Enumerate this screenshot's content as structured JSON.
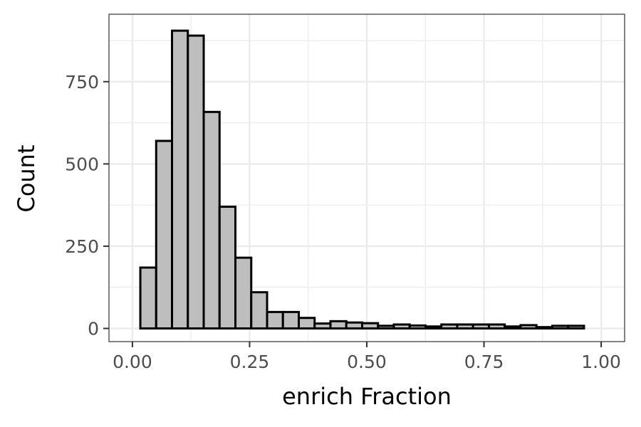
{
  "chart_data": {
    "type": "bar",
    "title": "",
    "xlabel": "enrich Fraction",
    "ylabel": "Count",
    "xlim": [
      -0.05,
      1.05
    ],
    "ylim": [
      -40,
      955
    ],
    "grid": true,
    "x_ticks": [
      {
        "value": 0.0,
        "label": "0.00"
      },
      {
        "value": 0.25,
        "label": "0.25"
      },
      {
        "value": 0.5,
        "label": "0.50"
      },
      {
        "value": 0.75,
        "label": "0.75"
      },
      {
        "value": 1.0,
        "label": "1.00"
      }
    ],
    "y_ticks": [
      {
        "value": 0,
        "label": "0"
      },
      {
        "value": 250,
        "label": "250"
      },
      {
        "value": 500,
        "label": "500"
      },
      {
        "value": 750,
        "label": "750"
      }
    ],
    "bin_width": 0.0338,
    "bin_centers": [
      0.0338,
      0.0676,
      0.1014,
      0.1352,
      0.169,
      0.2028,
      0.2366,
      0.2704,
      0.3042,
      0.338,
      0.3718,
      0.4056,
      0.4394,
      0.4732,
      0.507,
      0.5408,
      0.5746,
      0.6084,
      0.6422,
      0.676,
      0.7098,
      0.7436,
      0.7774,
      0.8112,
      0.845,
      0.8788,
      0.9126,
      0.9464
    ],
    "values": [
      185,
      570,
      905,
      890,
      658,
      370,
      215,
      110,
      50,
      50,
      32,
      15,
      22,
      18,
      16,
      8,
      12,
      9,
      6,
      12,
      12,
      12,
      12,
      6,
      10,
      4,
      8,
      8
    ],
    "bar_color": "#bebebe",
    "bar_border_color": "#000000",
    "grid_color": "#ebebeb",
    "panel_border_color": "#333333"
  }
}
